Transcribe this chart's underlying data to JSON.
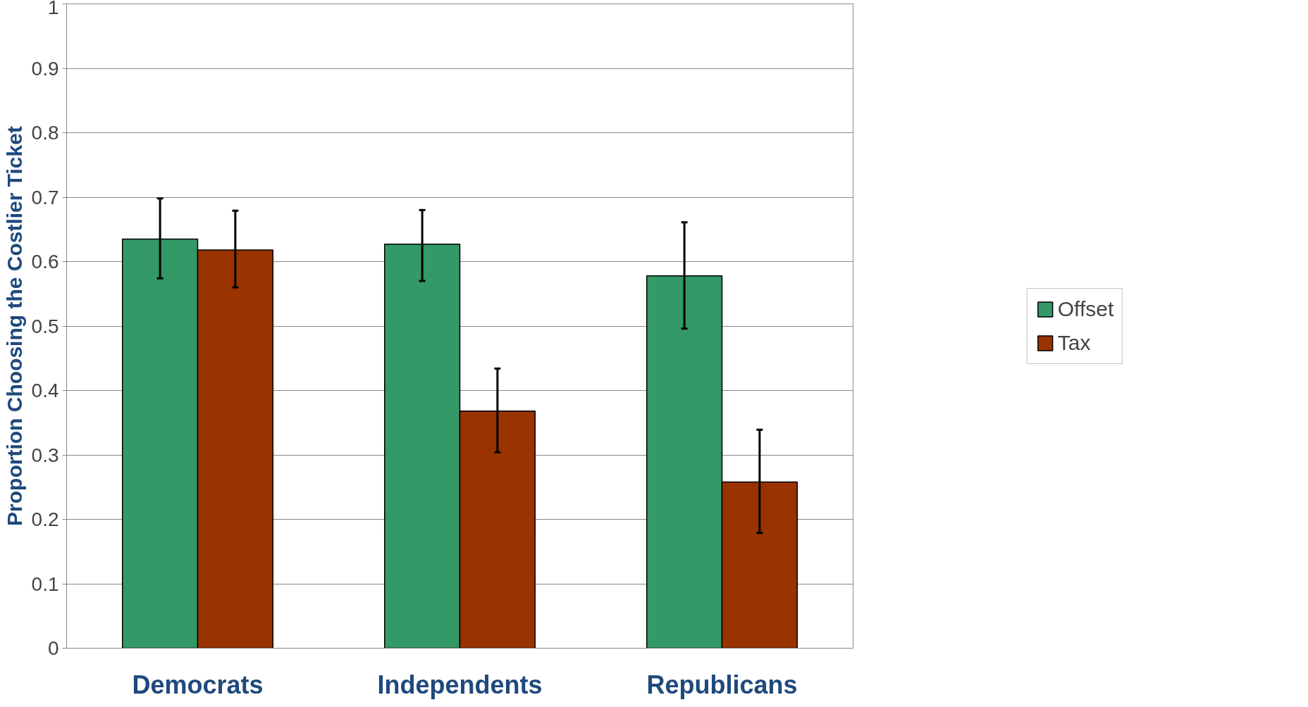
{
  "chart_data": {
    "type": "bar",
    "ylabel": "Proportion Choosing the Costlier Ticket",
    "categories": [
      "Democrats",
      "Independents",
      "Republicans"
    ],
    "series": [
      {
        "name": "Offset",
        "color": "#339966",
        "values": [
          0.635,
          0.627,
          0.578
        ],
        "errors": [
          [
            0.574,
            0.698
          ],
          [
            0.57,
            0.68
          ],
          [
            0.496,
            0.661
          ]
        ]
      },
      {
        "name": "Tax",
        "color": "#993300",
        "values": [
          0.618,
          0.368,
          0.258
        ],
        "errors": [
          [
            0.56,
            0.679
          ],
          [
            0.304,
            0.434
          ],
          [
            0.179,
            0.339
          ]
        ]
      }
    ],
    "ylim": [
      0,
      1
    ],
    "yticks": [
      0,
      0.1,
      0.2,
      0.3,
      0.4,
      0.5,
      0.6,
      0.7,
      0.8,
      0.9,
      1
    ],
    "grid": "y",
    "legend": "right"
  }
}
